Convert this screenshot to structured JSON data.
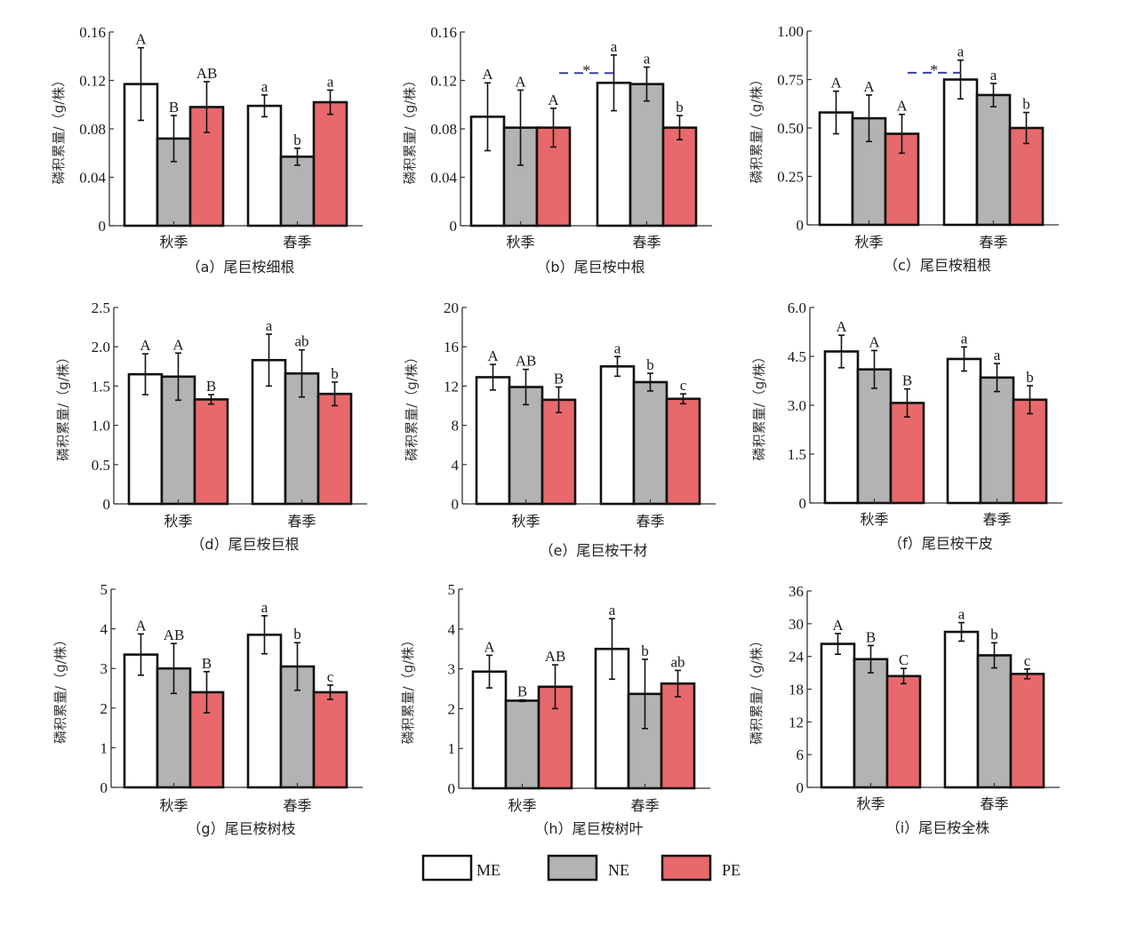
{
  "series_colors": {
    "ME": "#ffffff",
    "NE": "#b3b3b3",
    "PE": "#e8696b"
  },
  "star_color": "#3b3f9e",
  "legend": [
    {
      "name": "ME",
      "color": "#ffffff"
    },
    {
      "name": "NE",
      "color": "#b3b3b3"
    },
    {
      "name": "PE",
      "color": "#e8696b"
    }
  ],
  "chart_data": [
    {
      "type": "bar",
      "id": "a",
      "caption": "（a）尾巨桉细根",
      "ylabel": "磷积累量/（g/株）",
      "categories": [
        "秋季",
        "春季"
      ],
      "ylim": [
        0,
        0.16
      ],
      "yticks": [
        "0",
        "0.04",
        "0.08",
        "0.12",
        "0.16"
      ],
      "ytick_values": [
        0,
        0.04,
        0.08,
        0.12,
        0.16
      ],
      "series": [
        {
          "name": "ME",
          "values": [
            0.117,
            0.099
          ],
          "errors": [
            0.03,
            0.009
          ],
          "labels": [
            "A",
            "a"
          ]
        },
        {
          "name": "NE",
          "values": [
            0.072,
            0.057
          ],
          "errors": [
            0.019,
            0.007
          ],
          "labels": [
            "B",
            "b"
          ]
        },
        {
          "name": "PE",
          "values": [
            0.098,
            0.102
          ],
          "errors": [
            0.021,
            0.01
          ],
          "labels": [
            "AB",
            "a"
          ]
        }
      ],
      "annotation": null
    },
    {
      "type": "bar",
      "id": "b",
      "caption": "（b）尾巨桉中根",
      "ylabel": "磷积累量/（g/株）",
      "categories": [
        "秋季",
        "春季"
      ],
      "ylim": [
        0,
        0.16
      ],
      "yticks": [
        "0",
        "0.04",
        "0.08",
        "0.12",
        "0.16"
      ],
      "ytick_values": [
        0,
        0.04,
        0.08,
        0.12,
        0.16
      ],
      "series": [
        {
          "name": "ME",
          "values": [
            0.09,
            0.118
          ],
          "errors": [
            0.028,
            0.023
          ],
          "labels": [
            "A",
            "a"
          ]
        },
        {
          "name": "NE",
          "values": [
            0.081,
            0.117
          ],
          "errors": [
            0.031,
            0.014
          ],
          "labels": [
            "A",
            "a"
          ]
        },
        {
          "name": "PE",
          "values": [
            0.081,
            0.081
          ],
          "errors": [
            0.016,
            0.01
          ],
          "labels": [
            "A",
            "b"
          ]
        }
      ],
      "annotation": {
        "text": "*",
        "type": "dashed-bracket"
      }
    },
    {
      "type": "bar",
      "id": "c",
      "caption": "（c）尾巨桉粗根",
      "ylabel": "磷积累量/（g/株）",
      "categories": [
        "秋季",
        "春季"
      ],
      "ylim": [
        0,
        1.0
      ],
      "yticks": [
        "0",
        "0.25",
        "0.50",
        "0.75",
        "1.00"
      ],
      "ytick_values": [
        0,
        0.25,
        0.5,
        0.75,
        1.0
      ],
      "series": [
        {
          "name": "ME",
          "values": [
            0.58,
            0.75
          ],
          "errors": [
            0.11,
            0.1
          ],
          "labels": [
            "A",
            "a"
          ]
        },
        {
          "name": "NE",
          "values": [
            0.55,
            0.67
          ],
          "errors": [
            0.12,
            0.06
          ],
          "labels": [
            "A",
            "a"
          ]
        },
        {
          "name": "PE",
          "values": [
            0.47,
            0.5
          ],
          "errors": [
            0.1,
            0.08
          ],
          "labels": [
            "A",
            "b"
          ]
        }
      ],
      "annotation": {
        "text": "*",
        "type": "dashed-bracket"
      }
    },
    {
      "type": "bar",
      "id": "d",
      "caption": "（d）尾巨桉巨根",
      "ylabel": "磷积累量/（g/株）",
      "categories": [
        "秋季",
        "春季"
      ],
      "ylim": [
        0,
        2.5
      ],
      "yticks": [
        "0",
        "0.5",
        "1.0",
        "1.5",
        "2.0",
        "2.5"
      ],
      "ytick_values": [
        0,
        0.5,
        1.0,
        1.5,
        2.0,
        2.5
      ],
      "series": [
        {
          "name": "ME",
          "values": [
            1.65,
            1.83
          ],
          "errors": [
            0.26,
            0.33
          ],
          "labels": [
            "A",
            "a"
          ]
        },
        {
          "name": "NE",
          "values": [
            1.62,
            1.66
          ],
          "errors": [
            0.3,
            0.3
          ],
          "labels": [
            "A",
            "ab"
          ]
        },
        {
          "name": "PE",
          "values": [
            1.33,
            1.4
          ],
          "errors": [
            0.06,
            0.15
          ],
          "labels": [
            "B",
            "b"
          ]
        }
      ],
      "annotation": null
    },
    {
      "type": "bar",
      "id": "e",
      "caption": "（e）尾巨桉干材",
      "ylabel": "磷积累量/（g/株）",
      "categories": [
        "秋季",
        "春季"
      ],
      "ylim": [
        0,
        20
      ],
      "yticks": [
        "0",
        "4",
        "8",
        "12",
        "16",
        "20"
      ],
      "ytick_values": [
        0,
        4,
        8,
        12,
        16,
        20
      ],
      "series": [
        {
          "name": "ME",
          "values": [
            12.9,
            14.0
          ],
          "errors": [
            1.3,
            1.0
          ],
          "labels": [
            "A",
            "a"
          ]
        },
        {
          "name": "NE",
          "values": [
            11.9,
            12.4
          ],
          "errors": [
            1.8,
            0.9
          ],
          "labels": [
            "AB",
            "b"
          ]
        },
        {
          "name": "PE",
          "values": [
            10.6,
            10.7
          ],
          "errors": [
            1.3,
            0.5
          ],
          "labels": [
            "B",
            "c"
          ]
        }
      ],
      "annotation": null
    },
    {
      "type": "bar",
      "id": "f",
      "caption": "（f）尾巨桉干皮",
      "ylabel": "磷积累量/（g/株）",
      "categories": [
        "秋季",
        "春季"
      ],
      "ylim": [
        0,
        6.0
      ],
      "yticks": [
        "0",
        "1.5",
        "3.0",
        "4.5",
        "6.0"
      ],
      "ytick_values": [
        0,
        1.5,
        3.0,
        4.5,
        6.0
      ],
      "series": [
        {
          "name": "ME",
          "values": [
            4.65,
            4.42
          ],
          "errors": [
            0.5,
            0.37
          ],
          "labels": [
            "A",
            "a"
          ]
        },
        {
          "name": "NE",
          "values": [
            4.1,
            3.85
          ],
          "errors": [
            0.58,
            0.43
          ],
          "labels": [
            "A",
            "a"
          ]
        },
        {
          "name": "PE",
          "values": [
            3.07,
            3.17
          ],
          "errors": [
            0.43,
            0.43
          ],
          "labels": [
            "B",
            "b"
          ]
        }
      ],
      "annotation": null
    },
    {
      "type": "bar",
      "id": "g",
      "caption": "（g）尾巨桉树枝",
      "ylabel": "磷积累量/（g/株）",
      "categories": [
        "秋季",
        "春季"
      ],
      "ylim": [
        0,
        5
      ],
      "yticks": [
        "0",
        "1",
        "2",
        "3",
        "4",
        "5"
      ],
      "ytick_values": [
        0,
        1,
        2,
        3,
        4,
        5
      ],
      "series": [
        {
          "name": "ME",
          "values": [
            3.35,
            3.85
          ],
          "errors": [
            0.52,
            0.48
          ],
          "labels": [
            "A",
            "a"
          ]
        },
        {
          "name": "NE",
          "values": [
            3.0,
            3.05
          ],
          "errors": [
            0.63,
            0.6
          ],
          "labels": [
            "AB",
            "b"
          ]
        },
        {
          "name": "PE",
          "values": [
            2.4,
            2.4
          ],
          "errors": [
            0.52,
            0.18
          ],
          "labels": [
            "B",
            "c"
          ]
        }
      ],
      "annotation": null
    },
    {
      "type": "bar",
      "id": "h",
      "caption": "（h）尾巨桉树叶",
      "ylabel": "磷积累量/（g/株）",
      "categories": [
        "秋季",
        "春季"
      ],
      "ylim": [
        0,
        5
      ],
      "yticks": [
        "0",
        "1",
        "2",
        "3",
        "4",
        "5"
      ],
      "ytick_values": [
        0,
        1,
        2,
        3,
        4,
        5
      ],
      "series": [
        {
          "name": "ME",
          "values": [
            2.93,
            3.5
          ],
          "errors": [
            0.41,
            0.76
          ],
          "labels": [
            "A",
            "a"
          ]
        },
        {
          "name": "NE",
          "values": [
            2.2,
            2.37
          ],
          "errors": [
            0.02,
            0.87
          ],
          "labels": [
            "B",
            "b"
          ]
        },
        {
          "name": "PE",
          "values": [
            2.55,
            2.63
          ],
          "errors": [
            0.55,
            0.33
          ],
          "labels": [
            "AB",
            "ab"
          ]
        }
      ],
      "annotation": null
    },
    {
      "type": "bar",
      "id": "i",
      "caption": "（i）尾巨桉全株",
      "ylabel": "磷积累量/（g/株）",
      "categories": [
        "秋季",
        "春季"
      ],
      "ylim": [
        0,
        36
      ],
      "yticks": [
        "0",
        "6",
        "12",
        "18",
        "24",
        "30",
        "36"
      ],
      "ytick_values": [
        0,
        6,
        12,
        18,
        24,
        30,
        36
      ],
      "series": [
        {
          "name": "ME",
          "values": [
            26.3,
            28.5
          ],
          "errors": [
            1.9,
            1.7
          ],
          "labels": [
            "A",
            "a"
          ]
        },
        {
          "name": "NE",
          "values": [
            23.5,
            24.2
          ],
          "errors": [
            2.5,
            2.3
          ],
          "labels": [
            "B",
            "b"
          ]
        },
        {
          "name": "PE",
          "values": [
            20.4,
            20.8
          ],
          "errors": [
            1.4,
            0.9
          ],
          "labels": [
            "C",
            "c"
          ]
        }
      ],
      "annotation": null
    }
  ]
}
